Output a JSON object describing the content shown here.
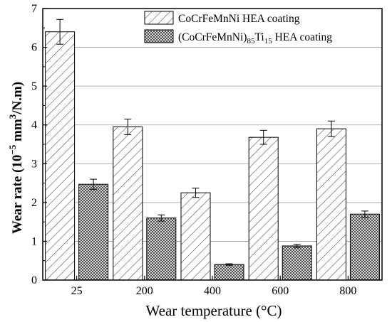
{
  "chart_data": {
    "type": "bar",
    "xlabel": "Wear temperature (°C)",
    "ylabel": {
      "main": "Wear rate (10",
      "exp1": "−5",
      "mid": " mm",
      "exp2": "3",
      "end": "/N.m)"
    },
    "categories": [
      "25",
      "200",
      "400",
      "600",
      "800"
    ],
    "ylim": [
      0,
      7
    ],
    "yticks": [
      "0",
      "1",
      "2",
      "3",
      "4",
      "5",
      "6",
      "7"
    ],
    "grid": "horizontal",
    "legend_position": "top-right",
    "series": [
      {
        "name": "CoCrFeMnNi HEA coating",
        "pattern": "diagonal-hatch",
        "values": [
          6.4,
          3.95,
          2.25,
          3.68,
          3.9
        ],
        "errors": [
          0.32,
          0.2,
          0.12,
          0.18,
          0.2
        ]
      },
      {
        "name_parts": [
          "(CoCrFeMnNi)",
          "85",
          "Ti",
          "15",
          " HEA coating"
        ],
        "pattern": "crosshatch",
        "values": [
          2.47,
          1.6,
          0.4,
          0.88,
          1.7
        ],
        "errors": [
          0.13,
          0.08,
          0.02,
          0.04,
          0.08
        ]
      }
    ]
  }
}
